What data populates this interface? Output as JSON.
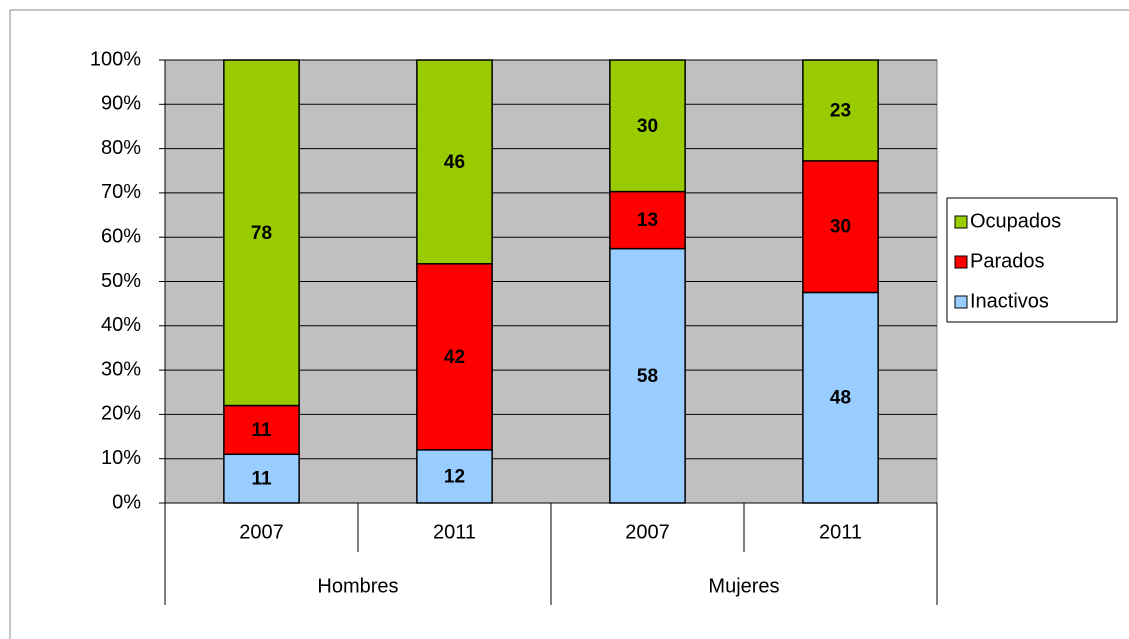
{
  "chart_data": {
    "type": "bar",
    "stacked": "percent",
    "categories": [
      "2007",
      "2011",
      "2007",
      "2011"
    ],
    "groups": [
      "Hombres",
      "Mujeres"
    ],
    "series": [
      {
        "name": "Inactivos",
        "color": "#99ccff",
        "values": [
          11,
          12,
          58,
          48
        ]
      },
      {
        "name": "Parados",
        "color": "#ff0000",
        "values": [
          11,
          42,
          13,
          30
        ]
      },
      {
        "name": "Ocupados",
        "color": "#99cc00",
        "values": [
          78,
          46,
          30,
          23
        ]
      }
    ],
    "ylim": [
      0,
      100
    ],
    "yticks": [
      {
        "value": 0,
        "label": "0%"
      },
      {
        "value": 10,
        "label": "10%"
      },
      {
        "value": 20,
        "label": "20%"
      },
      {
        "value": 30,
        "label": "30%"
      },
      {
        "value": 40,
        "label": "40%"
      },
      {
        "value": 50,
        "label": "50%"
      },
      {
        "value": 60,
        "label": "60%"
      },
      {
        "value": 70,
        "label": "70%"
      },
      {
        "value": 80,
        "label": "80%"
      },
      {
        "value": 90,
        "label": "90%"
      },
      {
        "value": 100,
        "label": "100%"
      }
    ],
    "grid": true,
    "plot_background": "#c0c0c0",
    "legend": "right"
  }
}
